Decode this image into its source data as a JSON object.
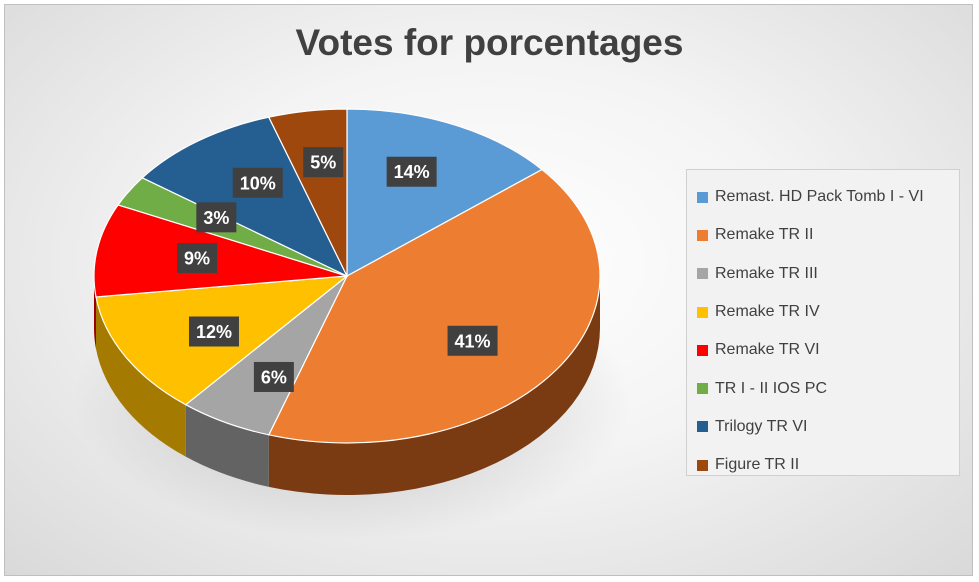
{
  "chart_data": {
    "type": "pie",
    "title": "Votes for porcentages",
    "legend_position": "right",
    "slices": [
      {
        "name": "Remast. HD Pack Tomb I - VI",
        "value": 14,
        "label": "14%",
        "color": "#5b9bd5",
        "side_color": "#2f5f8f"
      },
      {
        "name": "Remake TR II",
        "value": 41,
        "label": "41%",
        "color": "#ed7d31",
        "side_color": "#7a3b12"
      },
      {
        "name": "Remake TR III",
        "value": 6,
        "label": "6%",
        "color": "#a5a5a5",
        "side_color": "#636363"
      },
      {
        "name": "Remake TR IV",
        "value": 12,
        "label": "12%",
        "color": "#ffc000",
        "side_color": "#a47a00"
      },
      {
        "name": "Remake TR VI",
        "value": 9,
        "label": "9%",
        "color": "#ff0000",
        "side_color": "#9b0000"
      },
      {
        "name": "TR I - II IOS PC",
        "value": 3,
        "label": "3%",
        "color": "#70ad47",
        "side_color": "#3f6b24"
      },
      {
        "name": "Trilogy TR VI",
        "value": 10,
        "label": "10%",
        "color": "#255e91",
        "side_color": "#14344f"
      },
      {
        "name": "Figure TR II",
        "value": 5,
        "label": "5%",
        "color": "#9e480e",
        "side_color": "#5a2808"
      }
    ]
  }
}
